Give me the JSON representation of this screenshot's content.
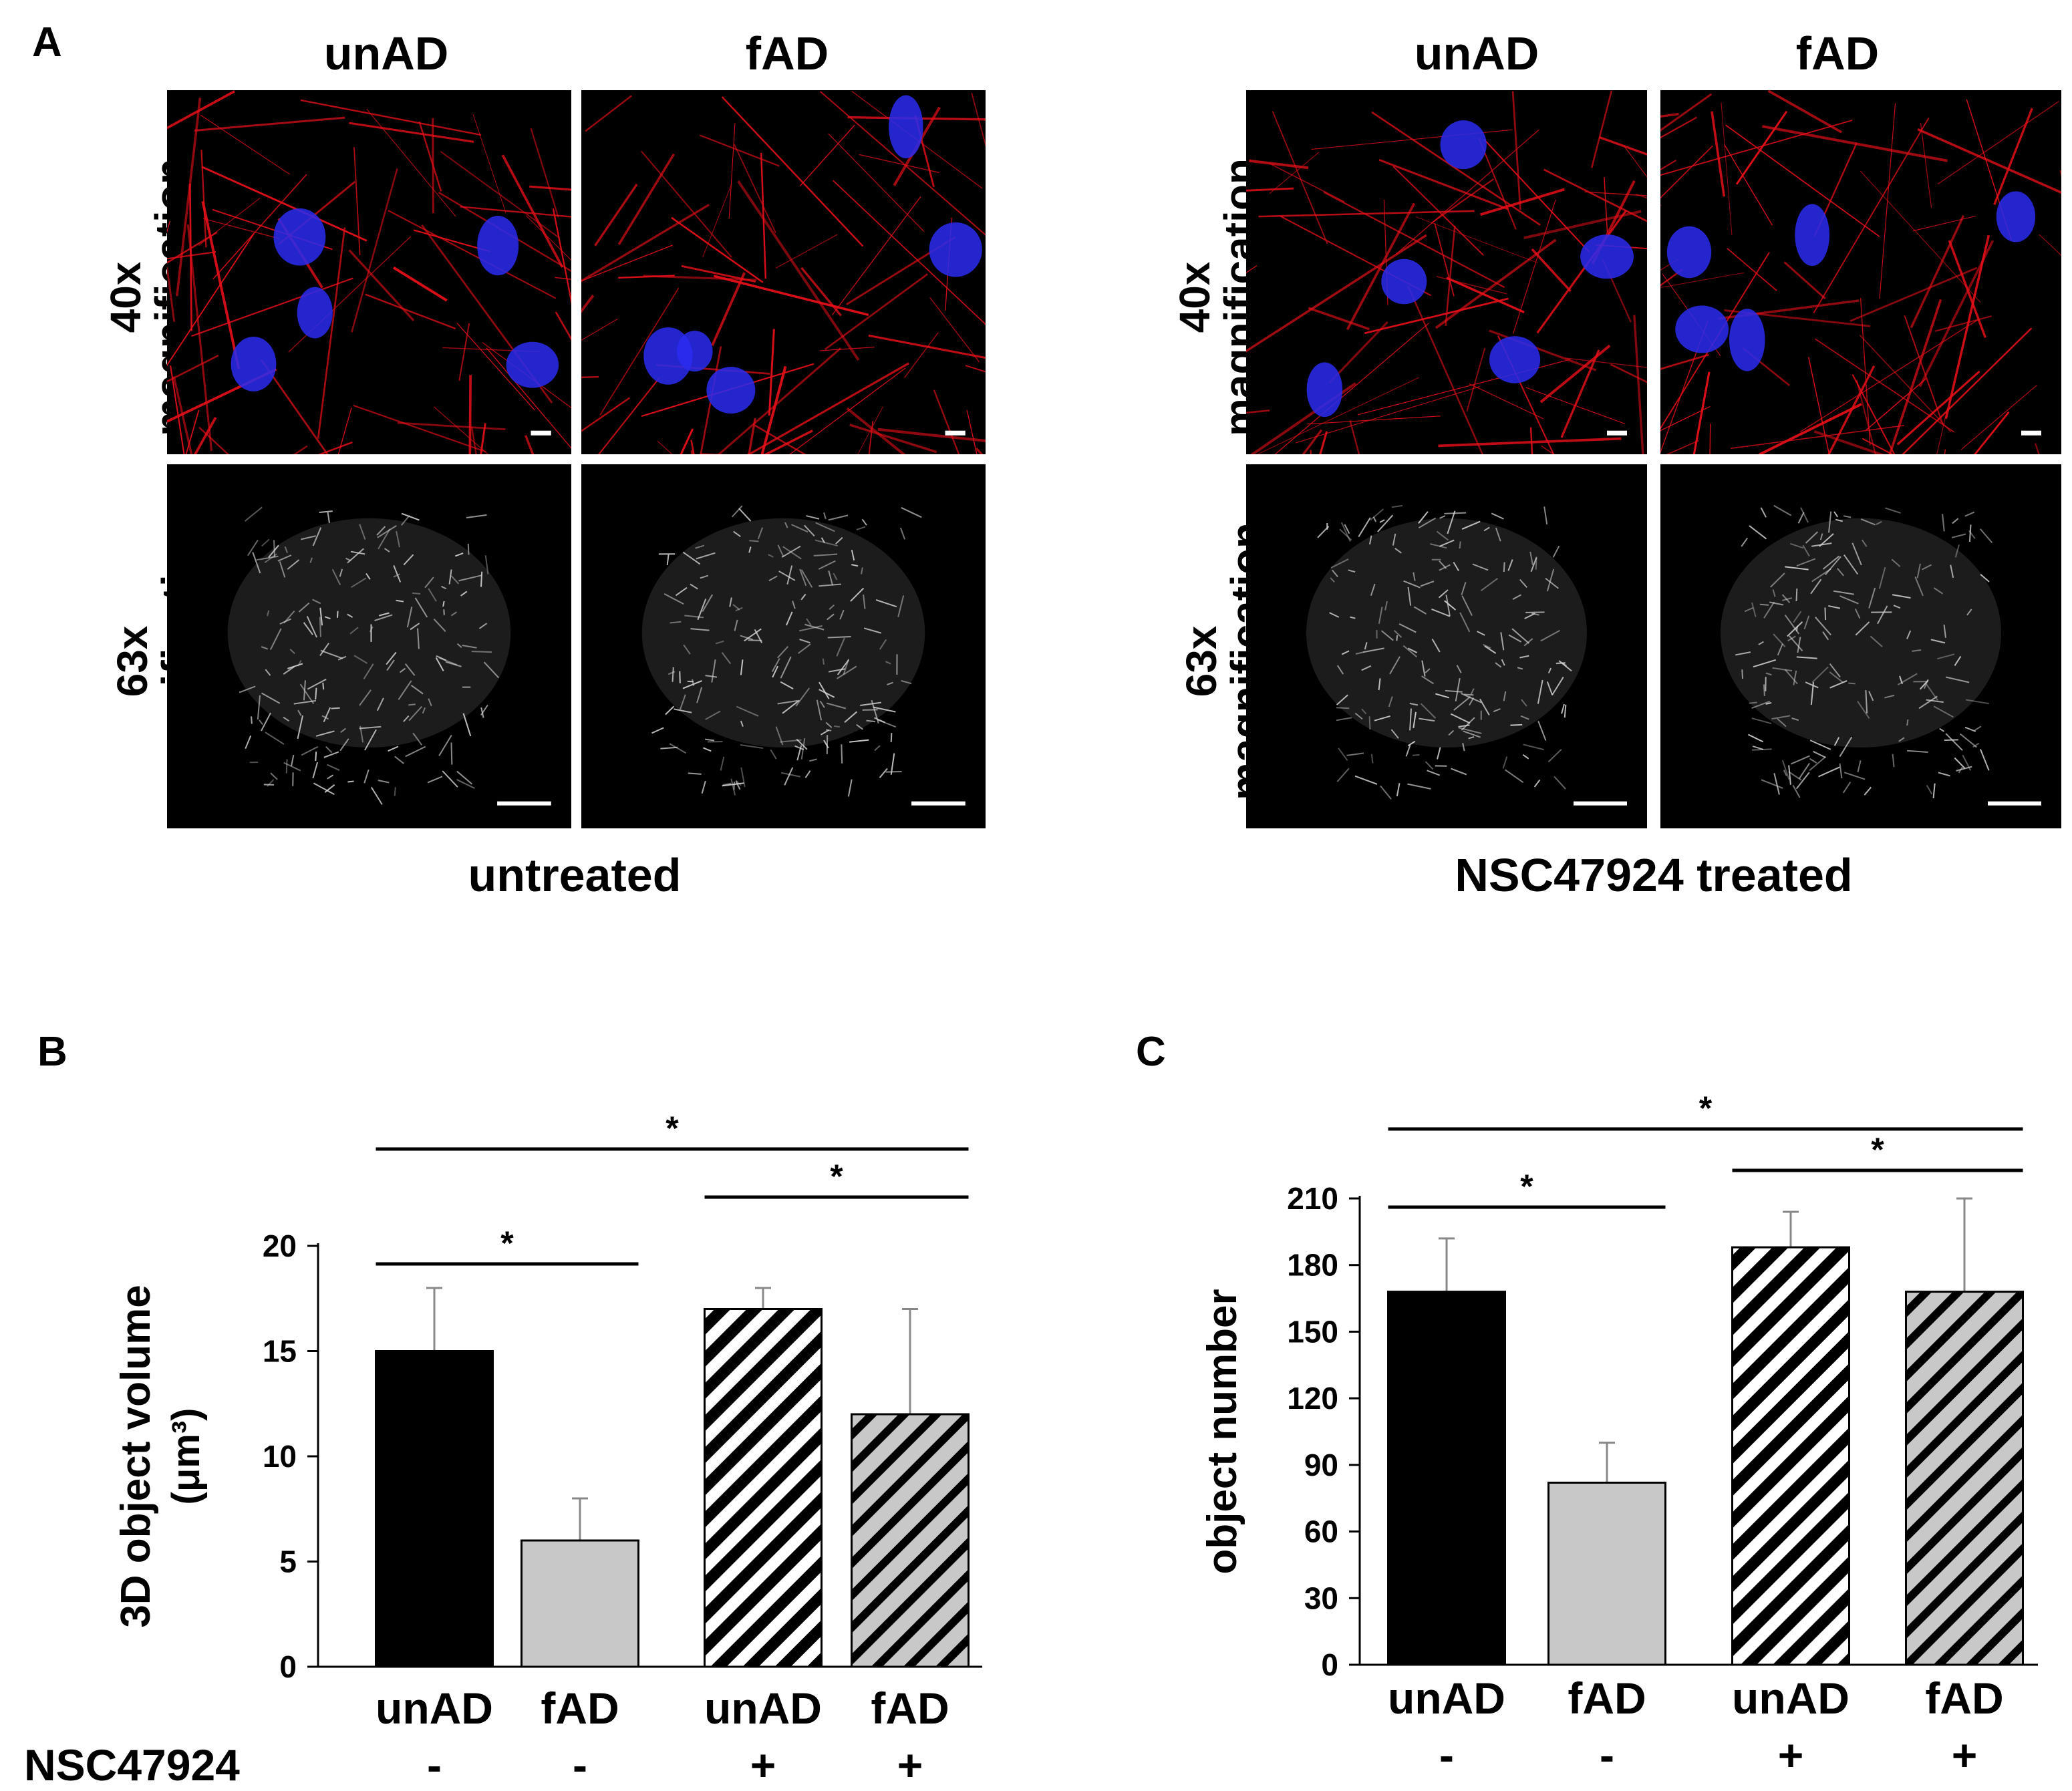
{
  "panel_a": {
    "letter": "A",
    "groups": [
      {
        "caption": "untreated",
        "columns": [
          "unAD",
          "fAD"
        ],
        "rows": [
          {
            "mag": "40x",
            "word": "magnification"
          },
          {
            "mag": "63x",
            "word": "magnification"
          }
        ]
      },
      {
        "caption": "NSC47924 treated",
        "columns": [
          "unAD",
          "fAD"
        ],
        "rows": [
          {
            "mag": "40x",
            "word": "magnification"
          },
          {
            "mag": "63x",
            "word": "magnification"
          }
        ]
      }
    ]
  },
  "colors": {
    "mito_red": "#e8101a",
    "nucleus_blue": "#2a2cf0",
    "bar_black": "#000000",
    "bar_grey": "#c8c8c8",
    "error_bar": "#888888"
  },
  "chart_data": [
    {
      "panel": "B",
      "type": "bar",
      "ylabel": "3D object volume",
      "yunit": "(μm³)",
      "ylim": [
        0,
        20
      ],
      "yticks": [
        0,
        5,
        10,
        15,
        20
      ],
      "categories": [
        "unAD",
        "fAD",
        "unAD",
        "fAD"
      ],
      "treatment_label": "NSC47924",
      "treatment": [
        "-",
        "-",
        "+",
        "+"
      ],
      "fills": [
        "solid-black",
        "solid-grey",
        "hatch-black",
        "hatch-grey"
      ],
      "values": [
        15,
        6,
        17,
        12
      ],
      "errors": [
        3,
        2,
        1,
        5
      ],
      "significance": [
        {
          "from": 0,
          "to": 1,
          "label": "*"
        },
        {
          "from": 2,
          "to": 3,
          "label": "*"
        },
        {
          "from": 0,
          "to": 3,
          "label": "*"
        }
      ]
    },
    {
      "panel": "C",
      "type": "bar",
      "ylabel": "object number",
      "ylim": [
        0,
        210
      ],
      "yticks": [
        0,
        30,
        60,
        90,
        120,
        150,
        180,
        210
      ],
      "categories": [
        "unAD",
        "fAD",
        "unAD",
        "fAD"
      ],
      "treatment": [
        "-",
        "-",
        "+",
        "+"
      ],
      "fills": [
        "solid-black",
        "solid-grey",
        "hatch-black",
        "hatch-grey"
      ],
      "values": [
        168,
        82,
        188,
        168
      ],
      "errors": [
        24,
        18,
        16,
        42
      ],
      "significance": [
        {
          "from": 0,
          "to": 1,
          "label": "*"
        },
        {
          "from": 2,
          "to": 3,
          "label": "*"
        },
        {
          "from": 0,
          "to": 3,
          "label": "*"
        }
      ]
    }
  ]
}
